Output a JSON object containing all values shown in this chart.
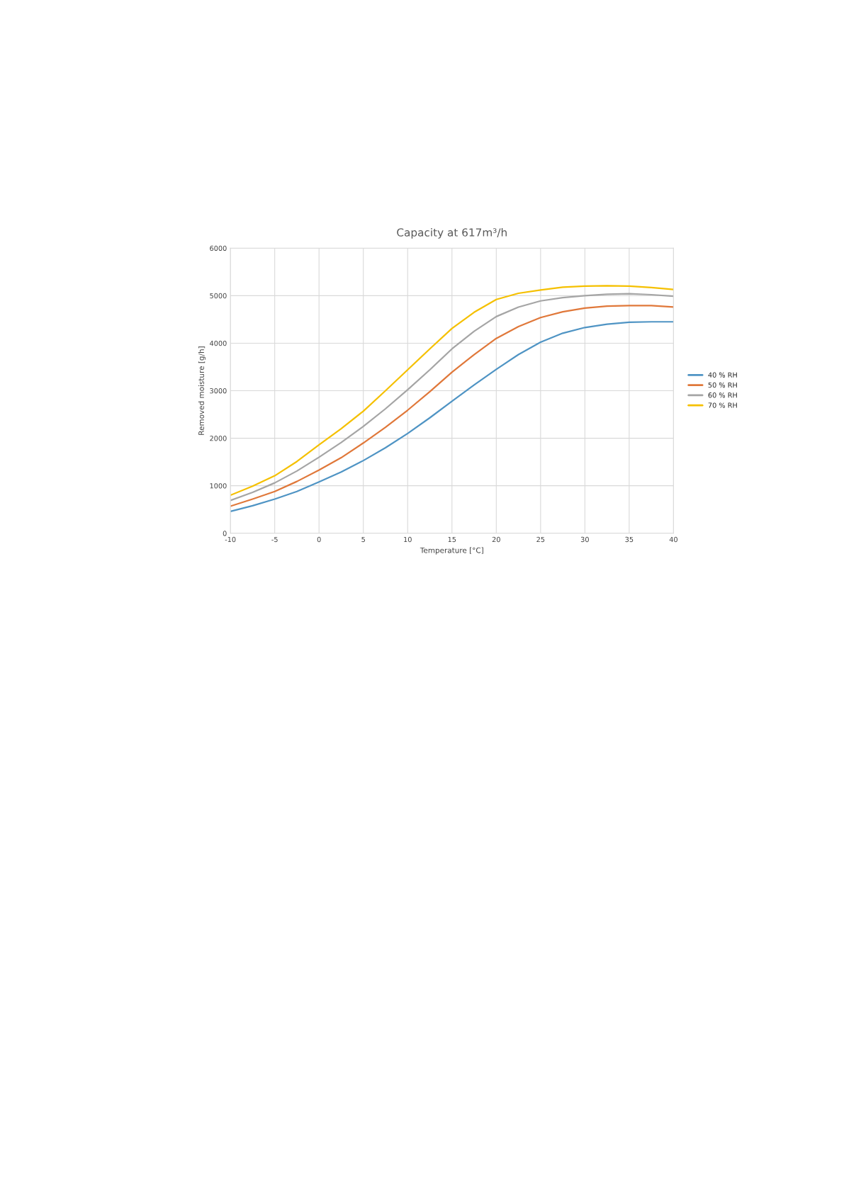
{
  "chart_data": {
    "type": "line",
    "title": "Capacity at 617m³/h",
    "xlabel": "Temperature [°C]",
    "ylabel": "Removed moisture [g/h]",
    "x": [
      -10,
      -7.5,
      -5,
      -2.5,
      0,
      2.5,
      5,
      7.5,
      10,
      12.5,
      15,
      17.5,
      20,
      22.5,
      25,
      27.5,
      30,
      32.5,
      35,
      37.5,
      40
    ],
    "series": [
      {
        "name": "40 % RH",
        "color": "#4f94c4",
        "values": [
          460,
          580,
          720,
          880,
          1080,
          1290,
          1530,
          1800,
          2100,
          2430,
          2780,
          3120,
          3450,
          3760,
          4020,
          4210,
          4330,
          4400,
          4440,
          4450,
          4450
        ]
      },
      {
        "name": "50 % RH",
        "color": "#e0783a",
        "values": [
          570,
          720,
          880,
          1090,
          1330,
          1590,
          1900,
          2230,
          2590,
          2980,
          3390,
          3760,
          4100,
          4350,
          4540,
          4660,
          4740,
          4780,
          4790,
          4790,
          4760
        ]
      },
      {
        "name": "60 % RH",
        "color": "#a5a5a5",
        "values": [
          690,
          860,
          1060,
          1310,
          1600,
          1910,
          2250,
          2620,
          3020,
          3440,
          3880,
          4250,
          4560,
          4760,
          4890,
          4960,
          5000,
          5030,
          5040,
          5020,
          4990
        ]
      },
      {
        "name": "70 % RH",
        "color": "#f5c000",
        "values": [
          800,
          990,
          1210,
          1510,
          1860,
          2200,
          2570,
          3000,
          3440,
          3880,
          4310,
          4650,
          4920,
          5050,
          5120,
          5180,
          5200,
          5210,
          5200,
          5170,
          5130
        ]
      }
    ],
    "xlim": [
      -10,
      40
    ],
    "xticks": [
      -10,
      -5,
      0,
      5,
      10,
      15,
      20,
      25,
      30,
      35,
      40
    ],
    "ylim": [
      0,
      6000
    ],
    "yticks": [
      0,
      1000,
      2000,
      3000,
      4000,
      5000,
      6000
    ],
    "grid": true,
    "legend": "right",
    "marker": "none",
    "line_style": "solid"
  }
}
